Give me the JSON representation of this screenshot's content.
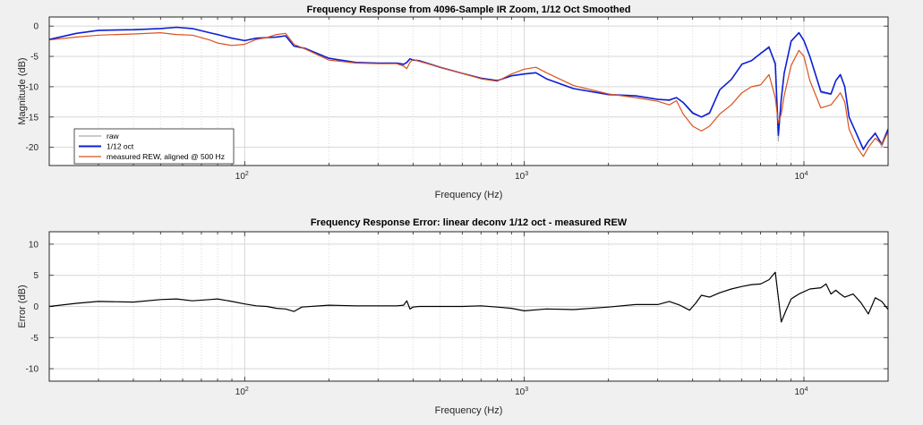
{
  "chart_data": [
    {
      "type": "line",
      "title": "Frequency Response from 4096-Sample IR Zoom, 1/12 Oct Smoothed",
      "xlabel": "Frequency (Hz)",
      "ylabel": "Magnitude (dB)",
      "xscale": "log",
      "xlim": [
        20,
        20000
      ],
      "ylim": [
        -23,
        1.5
      ],
      "yticks": [
        -20,
        -15,
        -10,
        -5,
        0
      ],
      "ytick_labels": [
        "-20",
        "-15",
        "-10",
        "-5",
        "0"
      ],
      "xticks_major": [
        100,
        1000,
        10000
      ],
      "xtick_labels": [
        {
          "base": "10",
          "exp": "2"
        },
        {
          "base": "10",
          "exp": "3"
        },
        {
          "base": "10",
          "exp": "4"
        }
      ],
      "grid": true,
      "legend_position": "bottom-left",
      "series": [
        {
          "name": "raw",
          "color": "#aaaaaa",
          "x": [
            20,
            25,
            30,
            40,
            50,
            57,
            65,
            75,
            80,
            90,
            100,
            110,
            120,
            130,
            140,
            150,
            165,
            200,
            250,
            300,
            350,
            370,
            380,
            390,
            400,
            420,
            500,
            600,
            700,
            800,
            900,
            1000,
            1100,
            1200,
            1500,
            2000,
            2500,
            3000,
            3300,
            3500,
            3700,
            4000,
            4300,
            4600,
            5000,
            5500,
            6000,
            6500,
            7000,
            7500,
            7900,
            8100,
            8300,
            8500,
            9000,
            9600,
            10000,
            10500,
            11500,
            12500,
            13000,
            13500,
            14000,
            14500,
            15500,
            16300,
            17000,
            18000,
            19000,
            20000
          ],
          "y": [
            -2.3,
            -1.2,
            -0.7,
            -0.6,
            -0.4,
            -0.2,
            -0.4,
            -1.1,
            -1.4,
            -2.0,
            -2.4,
            -2.0,
            -1.9,
            -1.8,
            -1.6,
            -3.3,
            -3.7,
            -5.3,
            -6.0,
            -6.1,
            -6.1,
            -6.4,
            -6.0,
            -5.4,
            -5.6,
            -5.7,
            -6.8,
            -7.8,
            -8.6,
            -9.0,
            -8.2,
            -7.9,
            -7.7,
            -8.7,
            -10.3,
            -11.3,
            -11.5,
            -12.1,
            -12.3,
            -11.8,
            -12.7,
            -14.5,
            -15.0,
            -14.5,
            -10.5,
            -8.8,
            -6.3,
            -5.7,
            -4.5,
            -3.3,
            -6.5,
            -19.0,
            -12.0,
            -7.8,
            -2.5,
            -1.1,
            -2.4,
            -5.0,
            -11.0,
            -11.3,
            -9.0,
            -8.0,
            -10.0,
            -15.0,
            -18.0,
            -20.5,
            -19.0,
            -17.5,
            -20.0,
            -17.0
          ]
        },
        {
          "name": "1/12 oct",
          "color": "#0a1fd6",
          "x": [
            20,
            25,
            30,
            40,
            50,
            57,
            65,
            75,
            80,
            90,
            100,
            110,
            120,
            130,
            140,
            150,
            165,
            200,
            250,
            300,
            350,
            370,
            380,
            390,
            400,
            420,
            500,
            600,
            700,
            800,
            900,
            1000,
            1100,
            1200,
            1500,
            2000,
            2500,
            3000,
            3300,
            3500,
            3700,
            4000,
            4300,
            4600,
            5000,
            5500,
            6000,
            6500,
            7000,
            7500,
            7900,
            8100,
            8300,
            8500,
            9000,
            9600,
            10000,
            10500,
            11500,
            12500,
            13000,
            13500,
            14000,
            14500,
            15500,
            16300,
            17000,
            18000,
            19000,
            20000
          ],
          "y": [
            -2.2,
            -1.2,
            -0.7,
            -0.6,
            -0.4,
            -0.2,
            -0.4,
            -1.1,
            -1.4,
            -2.0,
            -2.4,
            -2.0,
            -1.9,
            -1.8,
            -1.6,
            -3.3,
            -3.7,
            -5.3,
            -6.0,
            -6.1,
            -6.1,
            -6.3,
            -6.0,
            -5.4,
            -5.6,
            -5.7,
            -6.8,
            -7.8,
            -8.6,
            -9.0,
            -8.2,
            -7.9,
            -7.7,
            -8.7,
            -10.3,
            -11.3,
            -11.5,
            -12.1,
            -12.2,
            -11.8,
            -12.6,
            -14.3,
            -15.0,
            -14.3,
            -10.5,
            -8.8,
            -6.3,
            -5.7,
            -4.5,
            -3.5,
            -6.2,
            -18.0,
            -12.0,
            -7.8,
            -2.5,
            -1.1,
            -2.4,
            -5.0,
            -10.8,
            -11.2,
            -9.0,
            -8.0,
            -10.0,
            -15.0,
            -18.0,
            -20.3,
            -19.0,
            -17.7,
            -19.5,
            -17.0
          ]
        },
        {
          "name": "measured REW, aligned @ 500 Hz",
          "color": "#d9531e",
          "x": [
            20,
            25,
            30,
            40,
            50,
            57,
            65,
            75,
            80,
            90,
            100,
            110,
            120,
            130,
            140,
            150,
            165,
            200,
            250,
            300,
            350,
            370,
            380,
            390,
            400,
            420,
            500,
            600,
            700,
            800,
            900,
            1000,
            1100,
            1200,
            1500,
            2000,
            2500,
            3000,
            3300,
            3500,
            3700,
            4000,
            4300,
            4600,
            5000,
            5500,
            6000,
            6500,
            7000,
            7500,
            7900,
            8100,
            8300,
            8500,
            9000,
            9600,
            10000,
            10500,
            11500,
            12500,
            13000,
            13500,
            14000,
            14500,
            15500,
            16300,
            17000,
            18000,
            19000,
            20000
          ],
          "y": [
            -2.3,
            -1.8,
            -1.5,
            -1.3,
            -1.1,
            -1.4,
            -1.5,
            -2.3,
            -2.8,
            -3.2,
            -3.0,
            -2.2,
            -1.9,
            -1.4,
            -1.2,
            -3.0,
            -3.8,
            -5.6,
            -6.1,
            -6.2,
            -6.2,
            -6.6,
            -7.0,
            -6.0,
            -5.5,
            -5.8,
            -6.8,
            -7.8,
            -8.7,
            -9.1,
            -7.9,
            -7.1,
            -6.8,
            -7.7,
            -9.8,
            -11.2,
            -11.8,
            -12.4,
            -13.0,
            -12.3,
            -14.5,
            -16.5,
            -17.3,
            -16.5,
            -14.5,
            -13.0,
            -11.0,
            -10.0,
            -9.7,
            -8.0,
            -11.8,
            -16.0,
            -14.5,
            -11.5,
            -6.5,
            -4.0,
            -5.0,
            -9.0,
            -13.5,
            -13.0,
            -12.0,
            -11.0,
            -12.5,
            -17.0,
            -20.0,
            -21.5,
            -20.0,
            -18.5,
            -19.5,
            -17.5
          ]
        }
      ]
    },
    {
      "type": "line",
      "title": "Frequency Response Error: linear deconv 1/12 oct - measured REW",
      "xlabel": "Frequency (Hz)",
      "ylabel": "Error (dB)",
      "xscale": "log",
      "xlim": [
        20,
        20000
      ],
      "ylim": [
        -12,
        12
      ],
      "yticks": [
        -10,
        -5,
        0,
        5,
        10
      ],
      "ytick_labels": [
        "-10",
        "-5",
        "0",
        "5",
        "10"
      ],
      "xticks_major": [
        100,
        1000,
        10000
      ],
      "xtick_labels": [
        {
          "base": "10",
          "exp": "2"
        },
        {
          "base": "10",
          "exp": "3"
        },
        {
          "base": "10",
          "exp": "4"
        }
      ],
      "grid": true,
      "series": [
        {
          "color": "#000000",
          "x": [
            20,
            25,
            30,
            40,
            50,
            57,
            65,
            75,
            80,
            90,
            100,
            110,
            120,
            130,
            140,
            150,
            160,
            200,
            250,
            300,
            350,
            370,
            380,
            390,
            400,
            420,
            500,
            600,
            700,
            800,
            900,
            1000,
            1200,
            1500,
            2000,
            2500,
            3000,
            3300,
            3600,
            3900,
            4100,
            4300,
            4600,
            5000,
            5500,
            6000,
            6500,
            7000,
            7500,
            7900,
            8150,
            8300,
            8600,
            9000,
            9600,
            10500,
            11500,
            12000,
            12500,
            13000,
            13500,
            14000,
            15000,
            16000,
            17000,
            18000,
            19000,
            20000
          ],
          "y": [
            0.0,
            0.5,
            0.8,
            0.7,
            1.1,
            1.2,
            0.9,
            1.1,
            1.2,
            0.8,
            0.4,
            0.1,
            0.0,
            -0.3,
            -0.4,
            -0.8,
            -0.1,
            0.2,
            0.1,
            0.1,
            0.1,
            0.2,
            0.9,
            -0.4,
            -0.1,
            0.0,
            0.0,
            0.0,
            0.1,
            -0.1,
            -0.3,
            -0.7,
            -0.4,
            -0.5,
            -0.1,
            0.3,
            0.3,
            0.8,
            0.2,
            -0.6,
            0.5,
            1.8,
            1.5,
            2.2,
            2.8,
            3.2,
            3.5,
            3.6,
            4.3,
            5.5,
            0.5,
            -2.5,
            -0.8,
            1.2,
            2.0,
            2.8,
            3.0,
            3.6,
            2.0,
            2.6,
            2.0,
            1.5,
            2.0,
            0.6,
            -1.2,
            1.4,
            0.8,
            -0.5
          ]
        }
      ]
    }
  ]
}
